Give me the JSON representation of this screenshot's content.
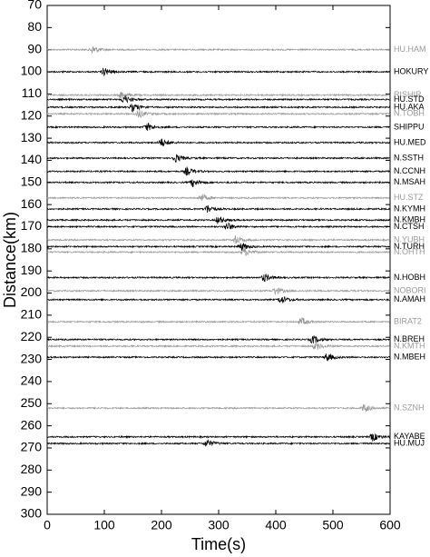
{
  "chart_data": {
    "type": "record-section",
    "xlabel": "Time(s)",
    "ylabel": "Distance(km)",
    "xlim": [
      0,
      600
    ],
    "ylim": [
      70,
      300
    ],
    "y_inverted": true,
    "xticks": [
      0,
      100,
      200,
      300,
      400,
      500,
      600
    ],
    "yticks": [
      70,
      80,
      90,
      100,
      110,
      120,
      130,
      140,
      150,
      160,
      170,
      180,
      190,
      200,
      210,
      220,
      230,
      240,
      250,
      260,
      270,
      280,
      290,
      300
    ],
    "stations": [
      {
        "name": "HU.HAM",
        "distance": 90,
        "arrival": 80,
        "color": "#999999"
      },
      {
        "name": "HOKURY",
        "distance": 100,
        "arrival": 100,
        "color": "#000000"
      },
      {
        "name": "RISHIR",
        "distance": 110.5,
        "arrival": 130,
        "color": "#999999"
      },
      {
        "name": "HU.STD",
        "distance": 112.5,
        "arrival": 135,
        "color": "#000000"
      },
      {
        "name": "HU.AKA",
        "distance": 116,
        "arrival": 150,
        "color": "#000000"
      },
      {
        "name": "N.TOBH",
        "distance": 119,
        "arrival": 160,
        "color": "#999999"
      },
      {
        "name": "SHIPPU",
        "distance": 125,
        "arrival": 175,
        "color": "#000000"
      },
      {
        "name": "HU.MED",
        "distance": 132,
        "arrival": 200,
        "color": "#000000"
      },
      {
        "name": "N.SSTH",
        "distance": 139,
        "arrival": 225,
        "color": "#000000"
      },
      {
        "name": "N.CCNH",
        "distance": 145,
        "arrival": 245,
        "color": "#000000"
      },
      {
        "name": "N.MSAH",
        "distance": 150,
        "arrival": 255,
        "color": "#000000"
      },
      {
        "name": "HU.STZ",
        "distance": 157,
        "arrival": 270,
        "color": "#999999"
      },
      {
        "name": "N.KYMH",
        "distance": 162,
        "arrival": 280,
        "color": "#000000"
      },
      {
        "name": "N.KMBH",
        "distance": 167,
        "arrival": 300,
        "color": "#000000"
      },
      {
        "name": "N.CTSH",
        "distance": 170,
        "arrival": 315,
        "color": "#000000"
      },
      {
        "name": "N.YUBH",
        "distance": 176,
        "arrival": 330,
        "color": "#999999"
      },
      {
        "name": "N.TURH",
        "distance": 179,
        "arrival": 340,
        "color": "#000000"
      },
      {
        "name": "N.OHTH",
        "distance": 181.5,
        "arrival": 345,
        "color": "#999999"
      },
      {
        "name": "N.HOBH",
        "distance": 193,
        "arrival": 380,
        "color": "#000000"
      },
      {
        "name": "NOBORI",
        "distance": 199,
        "arrival": 400,
        "color": "#999999"
      },
      {
        "name": "N.AMAH",
        "distance": 203,
        "arrival": 410,
        "color": "#000000"
      },
      {
        "name": "BIRAT2",
        "distance": 213,
        "arrival": 445,
        "color": "#999999"
      },
      {
        "name": "N.BREH",
        "distance": 221,
        "arrival": 465,
        "color": "#000000"
      },
      {
        "name": "N.KMTH",
        "distance": 224,
        "arrival": 470,
        "color": "#999999"
      },
      {
        "name": "N.MBEH",
        "distance": 229,
        "arrival": 490,
        "color": "#000000"
      },
      {
        "name": "N.SZNH",
        "distance": 252,
        "arrival": 555,
        "color": "#999999"
      },
      {
        "name": "KAYABE",
        "distance": 265,
        "arrival": 570,
        "color": "#000000"
      },
      {
        "name": "HU.MUJ",
        "distance": 268,
        "arrival": 280,
        "color": "#000000"
      }
    ]
  }
}
